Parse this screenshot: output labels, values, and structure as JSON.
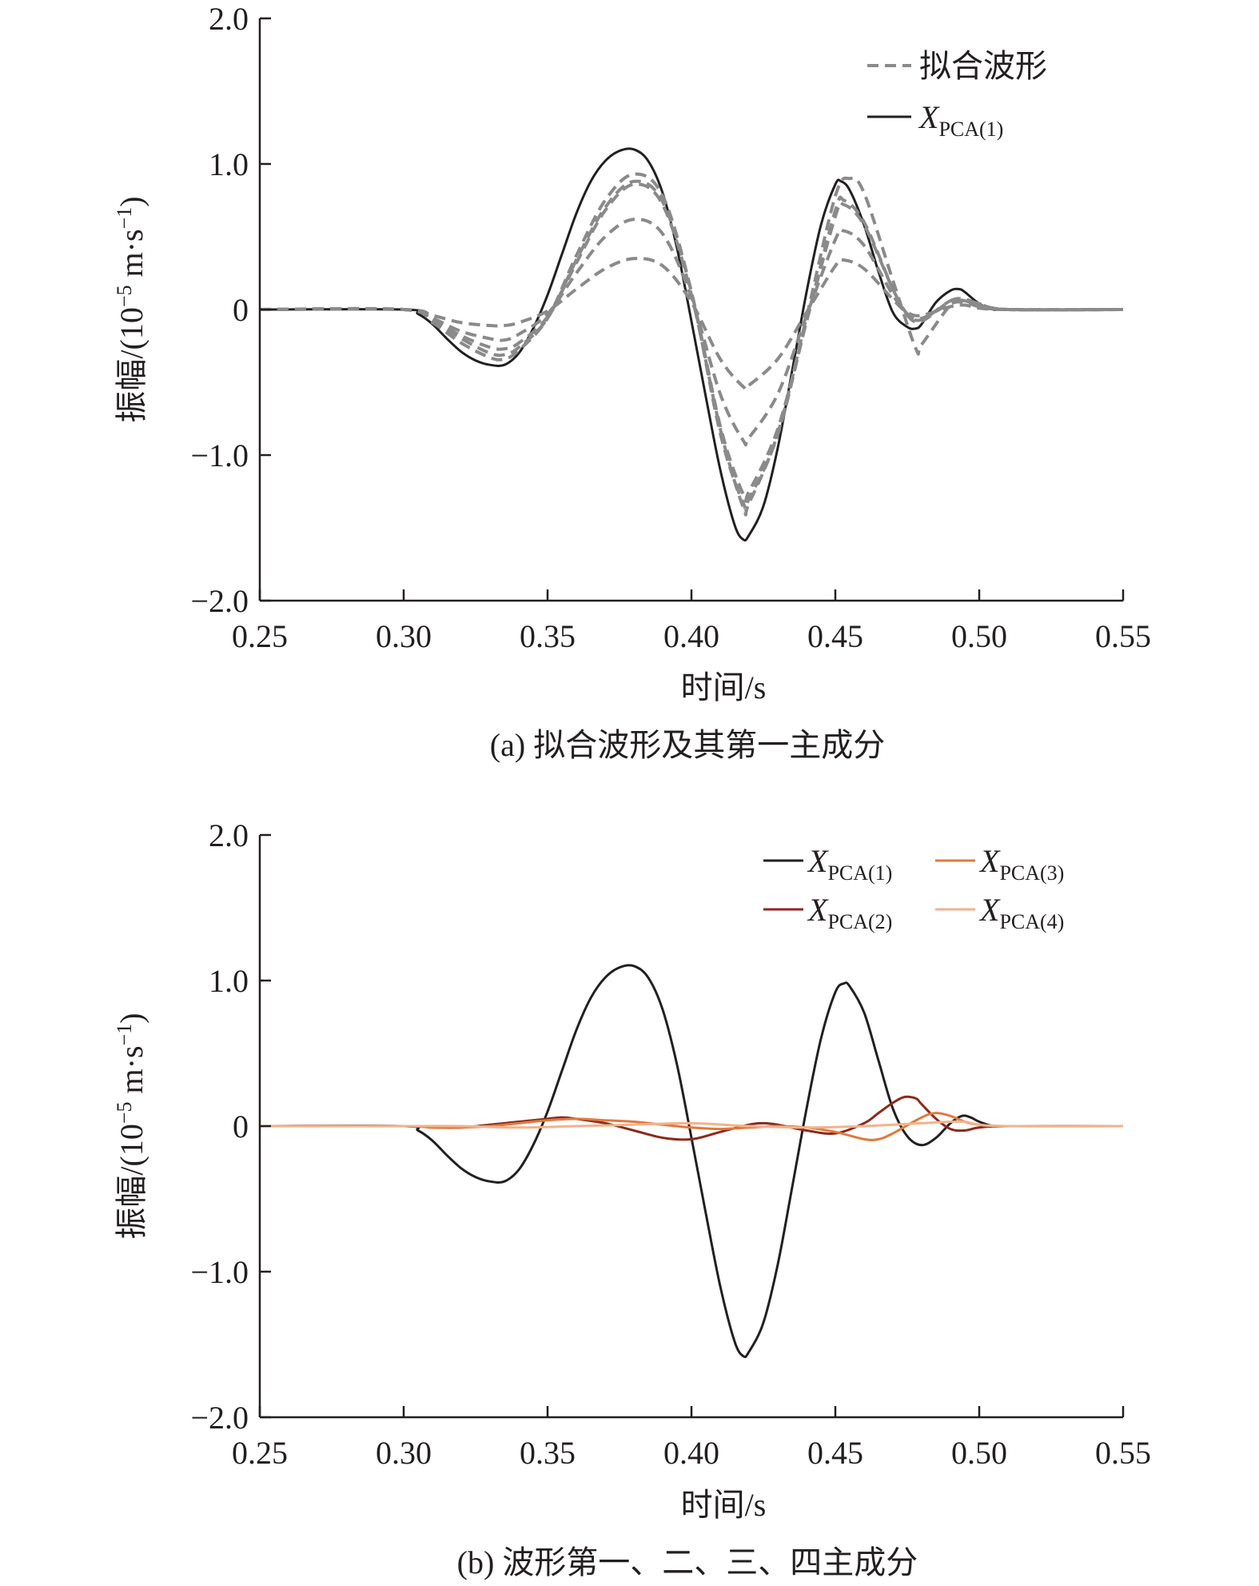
{
  "chart_data": [
    {
      "type": "line",
      "caption": "(a) 拟合波形及其第一主成分",
      "xlabel": "时间/s",
      "ylabel": "振幅/(10",
      "ylabel_exp": "−5",
      "ylabel_unit": " m·s",
      "ylabel_exp2": "−1",
      "ylabel_close": ")",
      "xlim": [
        0.25,
        0.55
      ],
      "ylim": [
        -2.0,
        2.0
      ],
      "xticks": [
        "0.25",
        "0.30",
        "0.35",
        "0.40",
        "0.45",
        "0.50",
        "0.55"
      ],
      "yticks": [
        "2.0",
        "1.0",
        "0",
        "−1.0",
        "−2.0"
      ],
      "legend_position": "top-right",
      "legend": [
        {
          "label": "拟合波形",
          "style": "dashed",
          "color": "#8a8a8a"
        },
        {
          "label_main": "X",
          "label_sub": "PCA(1)",
          "style": "solid",
          "color": "#231f20"
        }
      ],
      "series": [
        {
          "kind": "pca",
          "color": "#231f20",
          "dashed": false,
          "x": [
            0.25,
            0.3,
            0.305,
            0.31,
            0.315,
            0.32,
            0.325,
            0.33,
            0.335,
            0.34,
            0.345,
            0.35,
            0.355,
            0.36,
            0.365,
            0.37,
            0.375,
            0.38,
            0.385,
            0.39,
            0.395,
            0.4,
            0.405,
            0.41,
            0.415,
            0.418,
            0.42,
            0.425,
            0.43,
            0.435,
            0.44,
            0.445,
            0.45,
            0.452,
            0.455,
            0.46,
            0.465,
            0.47,
            0.475,
            0.478,
            0.48,
            0.485,
            0.49,
            0.493,
            0.495,
            0.5,
            0.505,
            0.51,
            0.55
          ],
          "y": [
            0,
            0,
            -0.03,
            -0.1,
            -0.2,
            -0.29,
            -0.35,
            -0.38,
            -0.38,
            -0.3,
            -0.13,
            0.1,
            0.38,
            0.66,
            0.88,
            1.02,
            1.09,
            1.1,
            1.02,
            0.8,
            0.42,
            -0.08,
            -0.6,
            -1.1,
            -1.48,
            -1.58,
            -1.55,
            -1.35,
            -0.95,
            -0.42,
            0.12,
            0.58,
            0.86,
            0.88,
            0.82,
            0.58,
            0.26,
            -0.02,
            -0.12,
            -0.13,
            -0.1,
            0.05,
            0.13,
            0.14,
            0.12,
            0.04,
            0.0,
            0,
            0
          ]
        },
        {
          "kind": "fit",
          "color": "#8a8a8a",
          "dashed": true,
          "x": [
            0.25,
            0.3,
            0.31,
            0.32,
            0.33,
            0.335,
            0.34,
            0.35,
            0.36,
            0.37,
            0.38,
            0.39,
            0.4,
            0.41,
            0.418,
            0.42,
            0.43,
            0.44,
            0.45,
            0.453,
            0.46,
            0.47,
            0.475,
            0.48,
            0.49,
            0.495,
            0.5,
            0.51,
            0.55
          ],
          "y": [
            0,
            0,
            -0.09,
            -0.23,
            -0.33,
            -0.34,
            -0.28,
            -0.06,
            0.37,
            0.75,
            0.93,
            0.78,
            0.12,
            -0.85,
            -1.33,
            -1.3,
            -0.86,
            -0.08,
            0.68,
            0.75,
            0.6,
            0.14,
            -0.04,
            -0.08,
            0.06,
            0.07,
            0.04,
            0,
            0
          ]
        },
        {
          "kind": "fit",
          "color": "#8a8a8a",
          "dashed": true,
          "x": [
            0.25,
            0.3,
            0.31,
            0.32,
            0.33,
            0.335,
            0.34,
            0.35,
            0.36,
            0.37,
            0.38,
            0.39,
            0.4,
            0.41,
            0.418,
            0.42,
            0.43,
            0.44,
            0.45,
            0.453,
            0.46,
            0.47,
            0.475,
            0.48,
            0.49,
            0.495,
            0.5,
            0.51,
            0.55
          ],
          "y": [
            0,
            0,
            -0.08,
            -0.2,
            -0.3,
            -0.31,
            -0.26,
            -0.06,
            0.34,
            0.7,
            0.88,
            0.74,
            0.12,
            -0.8,
            -1.27,
            -1.25,
            -0.82,
            -0.08,
            0.64,
            0.72,
            0.58,
            0.14,
            -0.03,
            -0.07,
            0.06,
            0.06,
            0.03,
            0,
            0
          ]
        },
        {
          "kind": "fit",
          "color": "#8a8a8a",
          "dashed": true,
          "x": [
            0.25,
            0.3,
            0.31,
            0.32,
            0.33,
            0.335,
            0.34,
            0.35,
            0.36,
            0.37,
            0.38,
            0.39,
            0.4,
            0.41,
            0.418,
            0.42,
            0.43,
            0.44,
            0.45,
            0.455,
            0.46,
            0.47,
            0.478,
            0.48,
            0.49,
            0.495,
            0.5,
            0.51,
            0.55
          ],
          "y": [
            0,
            0,
            -0.07,
            -0.18,
            -0.26,
            -0.27,
            -0.23,
            -0.05,
            0.32,
            0.68,
            0.86,
            0.72,
            0.1,
            -0.82,
            -1.36,
            -1.33,
            -0.85,
            -0.05,
            0.78,
            0.9,
            0.8,
            0.2,
            -0.27,
            -0.24,
            0.03,
            0.06,
            0.04,
            0,
            0
          ]
        },
        {
          "kind": "fit",
          "color": "#8a8a8a",
          "dashed": true,
          "x": [
            0.25,
            0.3,
            0.31,
            0.32,
            0.33,
            0.335,
            0.34,
            0.35,
            0.36,
            0.37,
            0.38,
            0.39,
            0.4,
            0.41,
            0.418,
            0.42,
            0.43,
            0.44,
            0.45,
            0.453,
            0.46,
            0.47,
            0.475,
            0.48,
            0.49,
            0.495,
            0.5,
            0.51,
            0.55
          ],
          "y": [
            0,
            0,
            -0.06,
            -0.15,
            -0.2,
            -0.21,
            -0.17,
            -0.03,
            0.25,
            0.5,
            0.62,
            0.52,
            0.08,
            -0.58,
            -0.9,
            -0.88,
            -0.58,
            -0.04,
            0.48,
            0.54,
            0.44,
            0.1,
            -0.03,
            -0.06,
            0.04,
            0.05,
            0.02,
            0,
            0
          ]
        },
        {
          "kind": "fit",
          "color": "#8a8a8a",
          "dashed": true,
          "x": [
            0.25,
            0.3,
            0.31,
            0.32,
            0.33,
            0.335,
            0.34,
            0.35,
            0.36,
            0.37,
            0.38,
            0.39,
            0.4,
            0.41,
            0.418,
            0.42,
            0.43,
            0.44,
            0.45,
            0.453,
            0.46,
            0.47,
            0.475,
            0.48,
            0.49,
            0.495,
            0.5,
            0.51,
            0.55
          ],
          "y": [
            0,
            0,
            -0.04,
            -0.09,
            -0.11,
            -0.11,
            -0.09,
            -0.01,
            0.14,
            0.28,
            0.35,
            0.3,
            0.05,
            -0.34,
            -0.53,
            -0.52,
            -0.34,
            -0.02,
            0.3,
            0.34,
            0.28,
            0.07,
            -0.02,
            -0.04,
            0.02,
            0.03,
            0.01,
            0,
            0
          ]
        }
      ]
    },
    {
      "type": "line",
      "caption": "(b) 波形第一、二、三、四主成分",
      "xlabel": "时间/s",
      "ylabel": "振幅/(10",
      "ylabel_exp": "−5",
      "ylabel_unit": " m·s",
      "ylabel_exp2": "−1",
      "ylabel_close": ")",
      "xlim": [
        0.25,
        0.55
      ],
      "ylim": [
        -2.0,
        2.0
      ],
      "xticks": [
        "0.25",
        "0.30",
        "0.35",
        "0.40",
        "0.45",
        "0.50",
        "0.55"
      ],
      "yticks": [
        "2.0",
        "1.0",
        "0",
        "−1.0",
        "−2.0"
      ],
      "legend_position": "top-right",
      "legend": [
        {
          "label_main": "X",
          "label_sub": "PCA(1)",
          "color": "#231f20"
        },
        {
          "label_main": "X",
          "label_sub": "PCA(3)",
          "color": "#e07a3c"
        },
        {
          "label_main": "X",
          "label_sub": "PCA(2)",
          "color": "#8b2a1c"
        },
        {
          "label_main": "X",
          "label_sub": "PCA(4)",
          "color": "#f4b28a"
        }
      ],
      "series": [
        {
          "name": "XPCA(1)",
          "color": "#231f20",
          "x": [
            0.25,
            0.3,
            0.305,
            0.31,
            0.315,
            0.32,
            0.325,
            0.33,
            0.335,
            0.34,
            0.345,
            0.35,
            0.355,
            0.36,
            0.365,
            0.37,
            0.375,
            0.38,
            0.385,
            0.39,
            0.395,
            0.4,
            0.405,
            0.41,
            0.415,
            0.418,
            0.42,
            0.425,
            0.43,
            0.435,
            0.44,
            0.445,
            0.45,
            0.453,
            0.455,
            0.46,
            0.465,
            0.47,
            0.475,
            0.48,
            0.485,
            0.49,
            0.494,
            0.497,
            0.5,
            0.505,
            0.51,
            0.55
          ],
          "y": [
            0,
            0,
            -0.03,
            -0.1,
            -0.2,
            -0.29,
            -0.35,
            -0.38,
            -0.38,
            -0.3,
            -0.13,
            0.1,
            0.38,
            0.66,
            0.88,
            1.02,
            1.09,
            1.1,
            1.02,
            0.8,
            0.42,
            -0.08,
            -0.6,
            -1.1,
            -1.48,
            -1.58,
            -1.55,
            -1.35,
            -0.95,
            -0.42,
            0.12,
            0.6,
            0.92,
            0.98,
            0.96,
            0.78,
            0.45,
            0.12,
            -0.07,
            -0.13,
            -0.08,
            0.02,
            0.07,
            0.06,
            0.03,
            0.0,
            0,
            0
          ]
        },
        {
          "name": "XPCA(2)",
          "color": "#8b2a1c",
          "x": [
            0.25,
            0.3,
            0.31,
            0.32,
            0.33,
            0.34,
            0.35,
            0.355,
            0.36,
            0.37,
            0.38,
            0.39,
            0.4,
            0.41,
            0.42,
            0.425,
            0.43,
            0.44,
            0.45,
            0.46,
            0.465,
            0.47,
            0.474,
            0.478,
            0.48,
            0.485,
            0.49,
            0.495,
            0.5,
            0.51,
            0.55
          ],
          "y": [
            0,
            0,
            -0.01,
            -0.01,
            0.01,
            0.03,
            0.05,
            0.06,
            0.05,
            0.02,
            -0.03,
            -0.08,
            -0.09,
            -0.04,
            0.01,
            0.02,
            0.01,
            -0.03,
            -0.05,
            0.02,
            0.09,
            0.16,
            0.2,
            0.19,
            0.15,
            0.05,
            -0.02,
            -0.03,
            -0.01,
            0,
            0
          ]
        },
        {
          "name": "XPCA(3)",
          "color": "#e07a3c",
          "x": [
            0.25,
            0.3,
            0.31,
            0.32,
            0.33,
            0.34,
            0.35,
            0.36,
            0.37,
            0.38,
            0.39,
            0.4,
            0.41,
            0.42,
            0.43,
            0.44,
            0.45,
            0.46,
            0.465,
            0.47,
            0.48,
            0.485,
            0.49,
            0.495,
            0.5,
            0.51,
            0.55
          ],
          "y": [
            0,
            0,
            -0.01,
            -0.01,
            0.0,
            0.02,
            0.04,
            0.05,
            0.04,
            0.03,
            0.01,
            -0.01,
            -0.02,
            -0.01,
            0.0,
            -0.01,
            -0.04,
            -0.09,
            -0.09,
            -0.05,
            0.06,
            0.09,
            0.07,
            0.03,
            0.01,
            0,
            0
          ]
        },
        {
          "name": "XPCA(4)",
          "color": "#f4b28a",
          "x": [
            0.25,
            0.3,
            0.32,
            0.34,
            0.36,
            0.38,
            0.4,
            0.42,
            0.44,
            0.46,
            0.47,
            0.48,
            0.49,
            0.495,
            0.5,
            0.51,
            0.55
          ],
          "y": [
            0,
            0,
            0.0,
            -0.01,
            0.0,
            0.01,
            0.02,
            0.0,
            -0.01,
            0.0,
            0.01,
            0.02,
            0.03,
            0.03,
            0.01,
            0,
            0
          ]
        }
      ]
    }
  ]
}
